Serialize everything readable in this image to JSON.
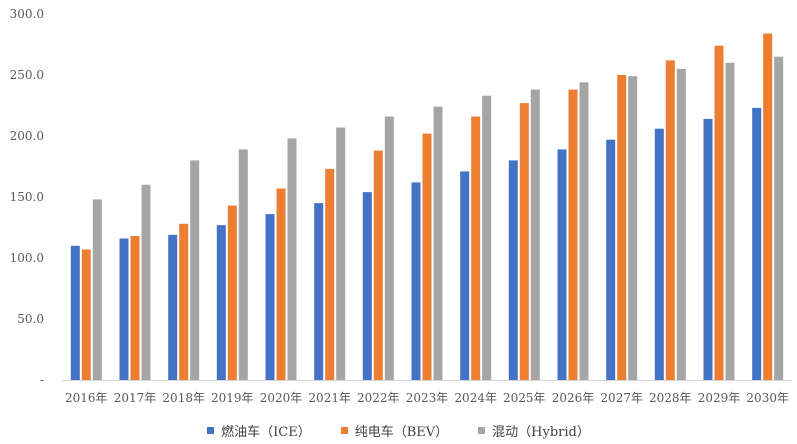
{
  "chart_data": {
    "type": "bar",
    "title": "",
    "xlabel": "",
    "ylabel": "",
    "ylim": [
      0,
      300
    ],
    "y_ticks": [
      "-",
      "50.0",
      "100.0",
      "150.0",
      "200.0",
      "250.0",
      "300.0"
    ],
    "grid": false,
    "legend_position": "bottom",
    "categories": [
      "2016年",
      "2017年",
      "2018年",
      "2019年",
      "2020年",
      "2021年",
      "2022年",
      "2023年",
      "2024年",
      "2025年",
      "2026年",
      "2027年",
      "2028年",
      "2029年",
      "2030年"
    ],
    "series": [
      {
        "name": "燃油车（ICE）",
        "color": "#4472C4",
        "values": [
          110,
          116,
          119,
          127,
          136,
          145,
          154,
          162,
          171,
          180,
          189,
          197,
          206,
          214,
          223
        ]
      },
      {
        "name": "纯电车（BEV）",
        "color": "#ED7D31",
        "values": [
          107,
          118,
          128,
          143,
          157,
          173,
          188,
          202,
          216,
          227,
          238,
          250,
          262,
          274,
          284
        ]
      },
      {
        "name": "混动（Hybrid）",
        "color": "#A5A5A5",
        "values": [
          148,
          160,
          180,
          189,
          198,
          207,
          216,
          224,
          233,
          238,
          244,
          249,
          255,
          260,
          265
        ]
      }
    ]
  }
}
